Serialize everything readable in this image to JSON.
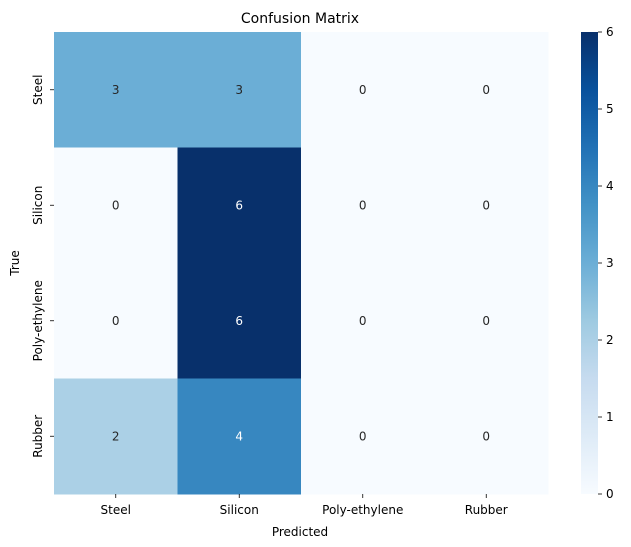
{
  "chart_data": {
    "type": "heatmap",
    "title": "Confusion Matrix",
    "xlabel": "Predicted",
    "ylabel": "True",
    "x_categories": [
      "Steel",
      "Silicon",
      "Poly-ethylene",
      "Rubber"
    ],
    "y_categories": [
      "Steel",
      "Silicon",
      "Poly-ethylene",
      "Rubber"
    ],
    "values": [
      [
        3,
        3,
        0,
        0
      ],
      [
        0,
        6,
        0,
        0
      ],
      [
        0,
        6,
        0,
        0
      ],
      [
        2,
        4,
        0,
        0
      ]
    ],
    "colormap": "Blues",
    "colorbar": {
      "range": [
        0,
        6
      ],
      "ticks": [
        "0",
        "1",
        "2",
        "3",
        "4",
        "5",
        "6"
      ]
    },
    "grid": false
  }
}
